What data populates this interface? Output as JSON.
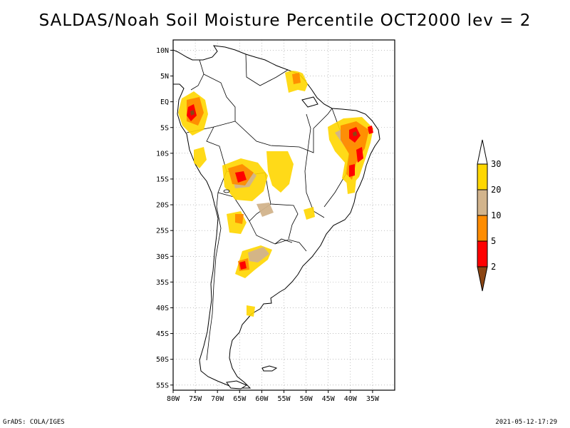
{
  "title": "SALDAS/Noah Soil Moisture Percentile OCT2000 lev = 2",
  "footer": {
    "left": "GrADS: COLA/IGES",
    "right": "2021-05-12-17:29"
  },
  "map": {
    "lon_range": [
      -80,
      -30
    ],
    "lat_range": [
      -56,
      12
    ],
    "lat_ticks": [
      {
        "value": 10,
        "label": "10N"
      },
      {
        "value": 5,
        "label": "5N"
      },
      {
        "value": 0,
        "label": "EQ"
      },
      {
        "value": -5,
        "label": "5S"
      },
      {
        "value": -10,
        "label": "10S"
      },
      {
        "value": -15,
        "label": "15S"
      },
      {
        "value": -20,
        "label": "20S"
      },
      {
        "value": -25,
        "label": "25S"
      },
      {
        "value": -30,
        "label": "30S"
      },
      {
        "value": -35,
        "label": "35S"
      },
      {
        "value": -40,
        "label": "40S"
      },
      {
        "value": -45,
        "label": "45S"
      },
      {
        "value": -50,
        "label": "50S"
      },
      {
        "value": -55,
        "label": "55S"
      }
    ],
    "lon_ticks": [
      {
        "value": -80,
        "label": "80W"
      },
      {
        "value": -75,
        "label": "75W"
      },
      {
        "value": -70,
        "label": "70W"
      },
      {
        "value": -65,
        "label": "65W"
      },
      {
        "value": -60,
        "label": "60W"
      },
      {
        "value": -55,
        "label": "55W"
      },
      {
        "value": -50,
        "label": "50W"
      },
      {
        "value": -45,
        "label": "45W"
      },
      {
        "value": -40,
        "label": "40W"
      },
      {
        "value": -35,
        "label": "35W"
      }
    ],
    "grid": true
  },
  "colorbar": {
    "classes": [
      {
        "color": "#8B4513"
      },
      {
        "color": "#FF0000"
      },
      {
        "color": "#FF8C00"
      },
      {
        "color": "#D2B48C"
      },
      {
        "color": "#FFD700"
      },
      {
        "color": "#FFFFFF"
      }
    ],
    "labels": [
      "2",
      "5",
      "10",
      "20",
      "30"
    ]
  },
  "colors": {
    "coast": "#000000",
    "grid": "#999999"
  }
}
